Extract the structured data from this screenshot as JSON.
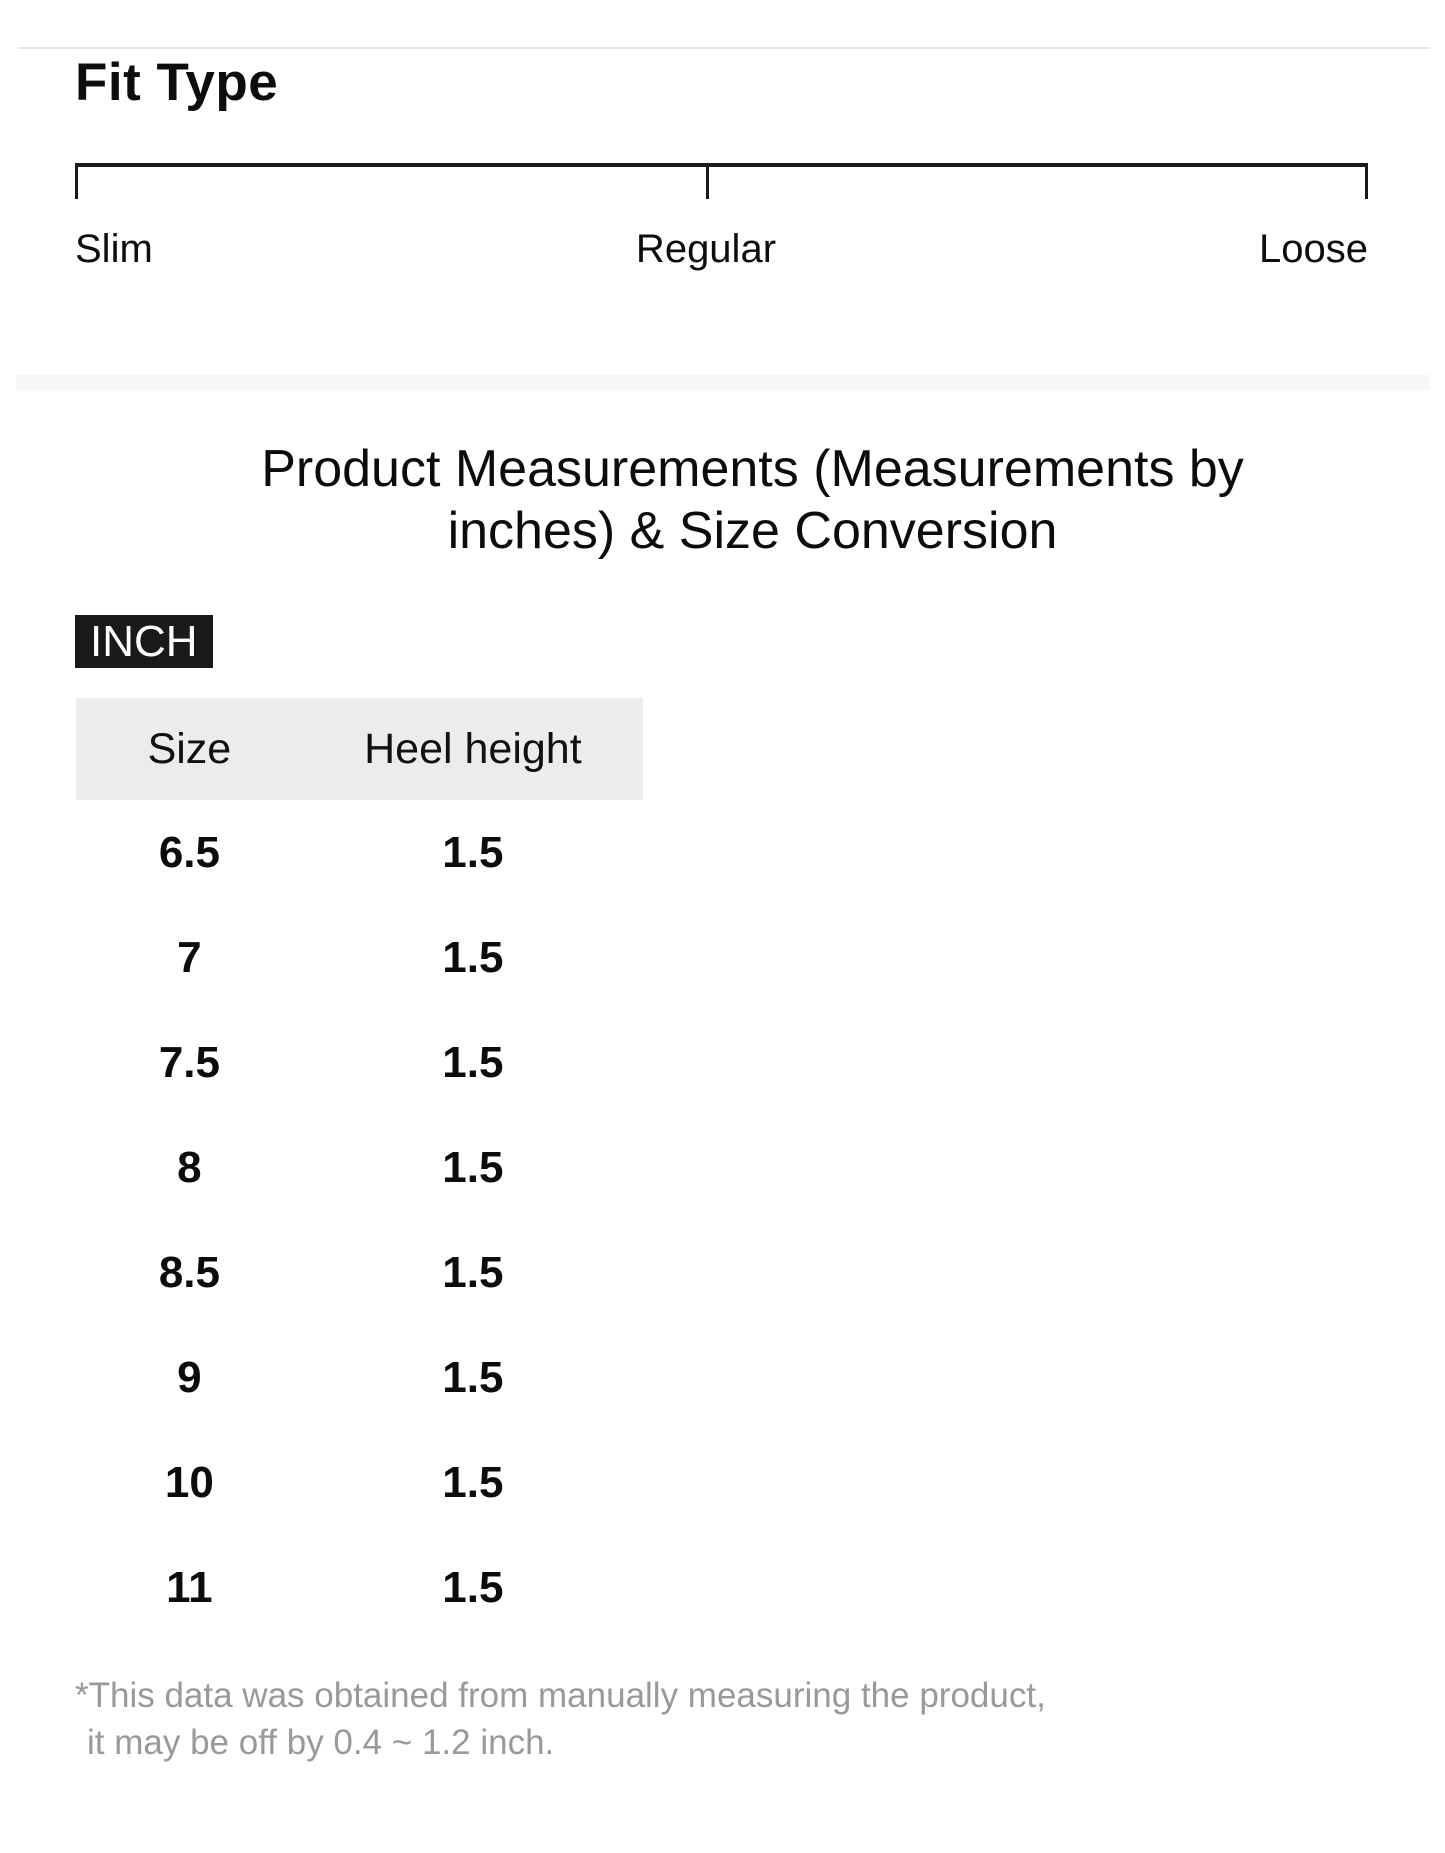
{
  "fit_type": {
    "heading": "Fit Type",
    "scale_labels": [
      "Slim",
      "Regular",
      "Loose"
    ]
  },
  "measurements": {
    "title_lines": [
      "Product Measurements (Measurements by",
      "inches) & Size Conversion"
    ],
    "unit_badge": "INCH",
    "table": {
      "headers": [
        "Size",
        "Heel height"
      ],
      "rows": [
        [
          "6.5",
          "1.5"
        ],
        [
          "7",
          "1.5"
        ],
        [
          "7.5",
          "1.5"
        ],
        [
          "8",
          "1.5"
        ],
        [
          "8.5",
          "1.5"
        ],
        [
          "9",
          "1.5"
        ],
        [
          "10",
          "1.5"
        ],
        [
          "11",
          "1.5"
        ]
      ]
    },
    "disclaimer_lines": [
      "*This data was obtained from manually measuring the product,",
      "it may be off by 0.4 ~ 1.2 inch."
    ]
  },
  "colors": {
    "scale_line": "#1a1a1a",
    "badge_bg": "#1a1a1a",
    "table_header_bg": "#ececec",
    "section_band": "#f7f7f7",
    "top_hairline": "#e6e6e6",
    "disclaimer_text": "#999999"
  }
}
